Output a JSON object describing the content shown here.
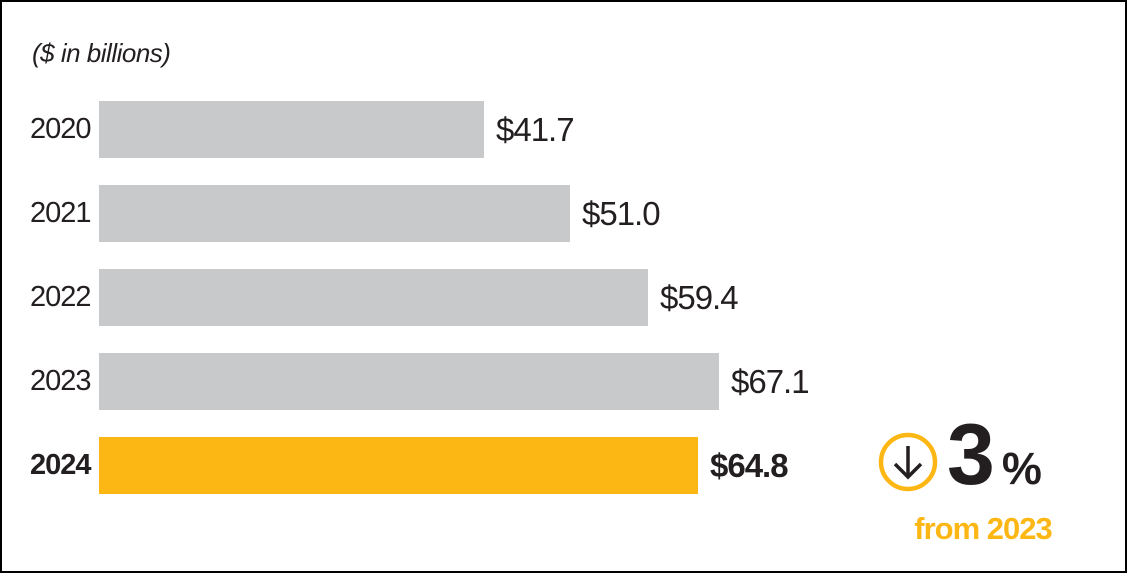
{
  "chart_data": {
    "type": "bar",
    "orientation": "horizontal",
    "title": "",
    "unit_label": "($ in billions)",
    "categories": [
      "2020",
      "2021",
      "2022",
      "2023",
      "2024"
    ],
    "values": [
      41.7,
      51.0,
      59.4,
      67.1,
      64.8
    ],
    "value_labels": [
      "$41.7",
      "$51.0",
      "$59.4",
      "$67.1",
      "$64.8"
    ],
    "highlight_index": 4,
    "xlim": [
      0,
      67.1
    ],
    "grid": false,
    "legend": false,
    "colors": {
      "bar_default": "#c8c9ca",
      "bar_highlight": "#fdb714",
      "text": "#231f20"
    }
  },
  "indicator": {
    "icon": "circle-arrow-down-icon",
    "direction": "down",
    "value": "3",
    "suffix": "%",
    "caption": "from 2023",
    "accent_color": "#fdb714",
    "arrow_color": "#231f20"
  }
}
